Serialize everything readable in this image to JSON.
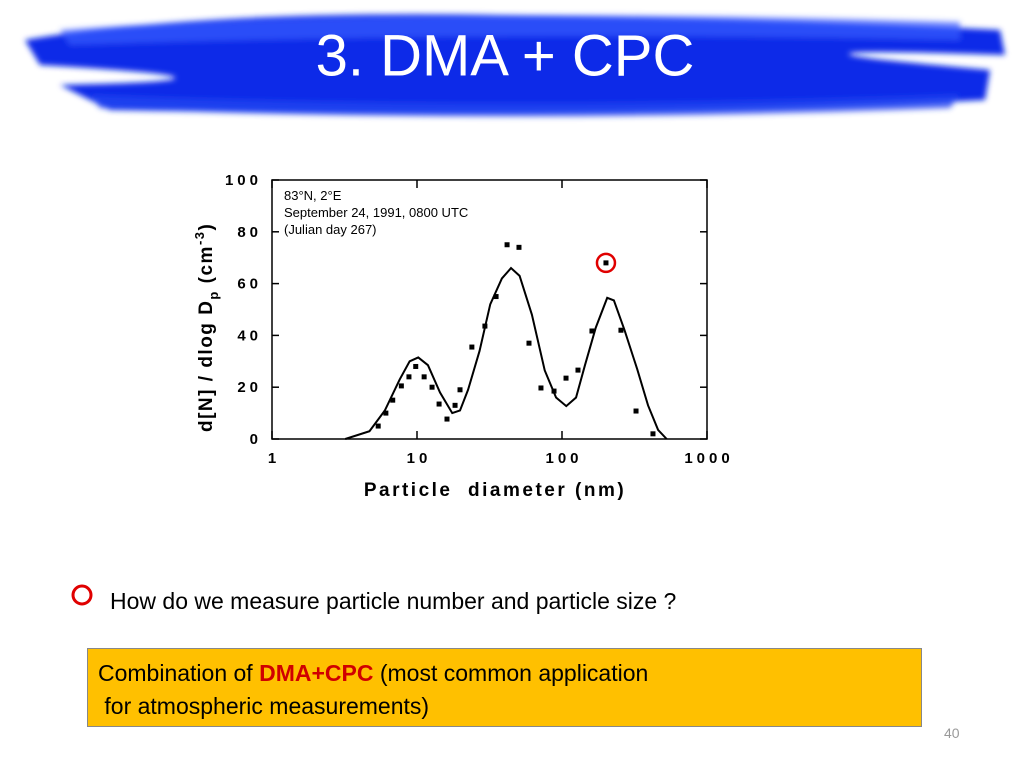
{
  "slide": {
    "title": "3. DMA + CPC",
    "bullet": "How do we measure particle number and particle size ?",
    "box": [
      "Combination of ",
      "DMA+CPC",
      " (most common application",
      " for atmospheric measurements)"
    ],
    "page_number": "40"
  },
  "chart_data": {
    "type": "scatter",
    "xlabel": "Particle  diameter (nm)",
    "ylabel": [
      "d[N] / dlog D",
      "p",
      " (cm",
      "-3",
      ")"
    ],
    "annotations": [
      "83°N, 2°E",
      "September 24, 1991, 0800 UTC",
      "(Julian day 267)"
    ],
    "xscale": "log",
    "xlim": [
      1,
      1000
    ],
    "xticks": [
      1,
      10,
      100,
      1000
    ],
    "ylim": [
      0,
      100
    ],
    "yticks": [
      0,
      20,
      40,
      60,
      80,
      100
    ],
    "highlight_index": 23,
    "highlight_color": "#e00000",
    "series": [
      {
        "style": "points",
        "color": "#000000",
        "x": [
          5.4,
          6.1,
          6.8,
          7.8,
          8.8,
          9.8,
          11.2,
          12.7,
          14.2,
          16.1,
          18.3,
          19.8,
          23.9,
          29.4,
          35.1,
          41.8,
          50.5,
          59.2,
          71.6,
          88.1,
          106.6,
          128.9,
          160.9,
          201,
          255,
          324,
          424
        ],
        "values": [
          5,
          10,
          15,
          20.5,
          24,
          28,
          24,
          20,
          13.5,
          7.7,
          13,
          19,
          35.5,
          43.6,
          55,
          75,
          74,
          37,
          19.7,
          18.5,
          23.5,
          26.6,
          41.7,
          68,
          42,
          10.8,
          2
        ]
      },
      {
        "style": "line",
        "color": "#000000",
        "x": [
          3.2,
          4.7,
          6,
          7.6,
          8.9,
          10.2,
          11.9,
          14.4,
          17.5,
          19.8,
          22.5,
          27,
          32,
          38.5,
          44.5,
          51,
          62,
          76,
          91,
          107,
          125,
          144,
          171,
          205,
          228,
          270,
          330,
          392,
          460,
          527
        ],
        "values": [
          0,
          3,
          11,
          23,
          30,
          31.5,
          28.5,
          18,
          10,
          11,
          19,
          34,
          52,
          62,
          66,
          63,
          48,
          26.5,
          16,
          12.7,
          16,
          28.5,
          43,
          54.5,
          53.5,
          42,
          27,
          13,
          3.5,
          0
        ]
      }
    ]
  }
}
